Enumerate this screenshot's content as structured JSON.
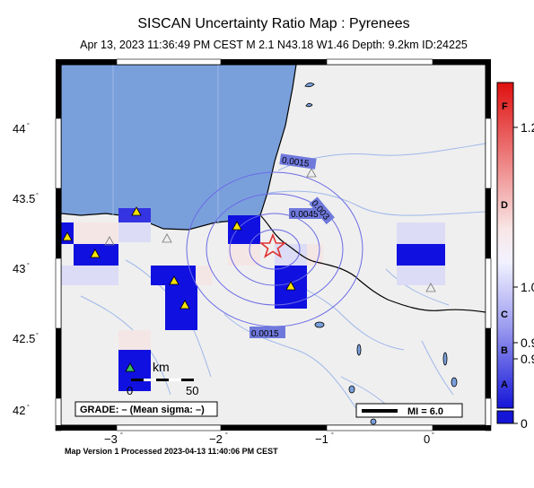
{
  "title": "SISCAN Uncertainty Ratio Map : Pyrenees",
  "subtitle": "Apr 13, 2023 11:36:49 PM CEST   M 2.1   N43.18 W1.46   Depth: 9.2km   ID:24225",
  "footer": "Map Version 1 Processed 2023-04-13 11:40:06 PM CEST",
  "map": {
    "lat_labels": [
      "44",
      "43.5",
      "43",
      "42.5",
      "42"
    ],
    "lon_labels": [
      "−3",
      "−2",
      "−1",
      "0"
    ],
    "contour_labels": [
      "0.0015",
      "0.0045",
      "0.003",
      "0.0015"
    ],
    "scale_unit": "km",
    "scale_ticks": [
      "0",
      "50"
    ],
    "grade_text": "GRADE: – (Mean sigma: –)",
    "mi_text": "MI = 6.0",
    "colors": {
      "sea": "#7aa0dc",
      "land": "#efefef",
      "strong_blue": "#1010e0",
      "epicenter": "#e03030"
    }
  },
  "colorbar": {
    "right_labels": [
      "1.2",
      "1.0",
      "0.9",
      "0.9",
      "0"
    ],
    "grades": [
      "F",
      "D",
      "C",
      "B",
      "A"
    ]
  }
}
